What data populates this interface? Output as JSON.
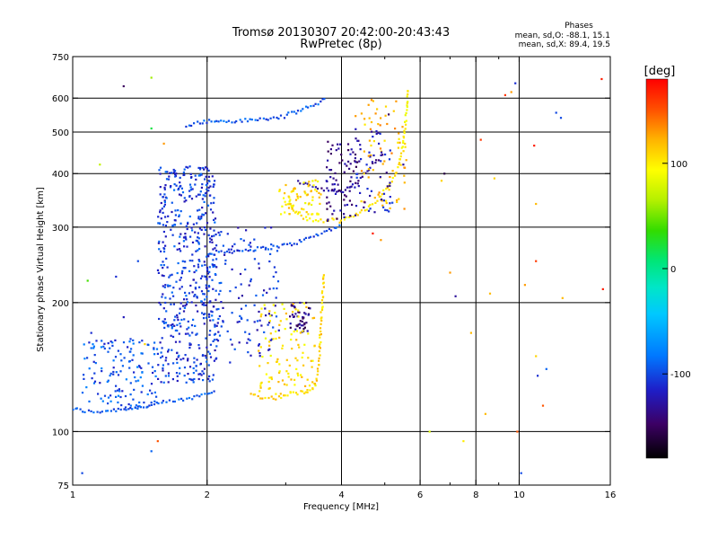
{
  "chart_data": {
    "type": "scatter",
    "title": "Tromsø 20130307 20:42:00-20:43:43",
    "subtitle": "RwPretec (8p)",
    "xlabel": "Frequency [MHz]",
    "ylabel": "Stationary phase Virtual Height [km]",
    "x_scale": "log",
    "y_scale": "log",
    "xlim": [
      1,
      16
    ],
    "ylim": [
      75,
      750
    ],
    "x_ticks": [
      1,
      2,
      4,
      6,
      8,
      10,
      16
    ],
    "x_tick_labels": [
      "1",
      "2",
      "4",
      "6",
      "8",
      "10",
      "16"
    ],
    "x_minor_ticks": [
      3,
      5,
      7,
      9
    ],
    "y_ticks": [
      75,
      100,
      200,
      300,
      400,
      500,
      600,
      750
    ],
    "y_tick_labels": [
      "75",
      "100",
      "200",
      "300",
      "400",
      "500",
      "600",
      "750"
    ],
    "grid_x": [
      2,
      4,
      6,
      8,
      10
    ],
    "grid_y": [
      100,
      200,
      300,
      400,
      500,
      600
    ],
    "stats": {
      "heading": "Phases",
      "line_o": "mean, sd,O: -88.1, 15.1",
      "line_x": "mean, sd,X: 89.4, 19.5"
    },
    "colorbar": {
      "label": "[deg]",
      "range": [
        -180,
        180
      ],
      "tick_values": [
        100,
        0,
        -100
      ],
      "tick_labels": [
        "100",
        "0",
        "-100"
      ],
      "colors": [
        "#000000",
        "#3c0064",
        "#1e1ec8",
        "#0078ff",
        "#00e6e6",
        "#00e678",
        "#32dc00",
        "#b4f000",
        "#ffff00",
        "#ffb400",
        "#ff5000",
        "#ff0000"
      ]
    },
    "series": [
      {
        "kind": "curve",
        "phase": -95,
        "points": [
          [
            1.0,
            113
          ],
          [
            1.05,
            112
          ],
          [
            1.1,
            111
          ],
          [
            1.2,
            112
          ],
          [
            1.3,
            113
          ],
          [
            1.4,
            114
          ],
          [
            1.5,
            115
          ],
          [
            1.6,
            117
          ],
          [
            1.7,
            118
          ],
          [
            1.8,
            119
          ],
          [
            1.9,
            121
          ],
          [
            2.0,
            123
          ],
          [
            2.1,
            126
          ]
        ]
      },
      {
        "kind": "curve",
        "phase": -100,
        "points": [
          [
            2.0,
            258
          ],
          [
            2.1,
            262
          ],
          [
            2.3,
            264
          ],
          [
            2.5,
            266
          ],
          [
            2.7,
            268
          ],
          [
            2.9,
            271
          ],
          [
            3.1,
            274
          ],
          [
            3.3,
            280
          ],
          [
            3.5,
            287
          ],
          [
            3.7,
            294
          ],
          [
            3.9,
            301
          ],
          [
            4.0,
            304
          ]
        ]
      },
      {
        "kind": "curve",
        "phase": 110,
        "points": [
          [
            2.5,
            122
          ],
          [
            2.7,
            120
          ],
          [
            2.9,
            120
          ],
          [
            3.0,
            122
          ],
          [
            3.2,
            123
          ],
          [
            3.4,
            126
          ],
          [
            3.5,
            130
          ],
          [
            3.55,
            140
          ],
          [
            3.58,
            160
          ],
          [
            3.6,
            180
          ],
          [
            3.62,
            200
          ],
          [
            3.64,
            220
          ],
          [
            3.65,
            235
          ]
        ]
      },
      {
        "kind": "curve",
        "phase": 100,
        "points": [
          [
            3.0,
            345
          ],
          [
            3.2,
            320
          ],
          [
            3.4,
            312
          ],
          [
            3.6,
            310
          ],
          [
            3.8,
            312
          ],
          [
            4.0,
            310
          ],
          [
            4.3,
            320
          ],
          [
            4.6,
            335
          ],
          [
            4.9,
            355
          ],
          [
            5.1,
            375
          ],
          [
            5.3,
            400
          ],
          [
            5.4,
            430
          ],
          [
            5.5,
            470
          ],
          [
            5.55,
            520
          ],
          [
            5.6,
            560
          ],
          [
            5.62,
            610
          ],
          [
            5.63,
            640
          ]
        ]
      },
      {
        "kind": "curve",
        "phase": -95,
        "points": [
          [
            1.8,
            520
          ],
          [
            1.9,
            525
          ],
          [
            2.0,
            530
          ],
          [
            2.1,
            530
          ],
          [
            2.3,
            530
          ],
          [
            2.6,
            535
          ],
          [
            2.9,
            540
          ],
          [
            3.2,
            560
          ],
          [
            3.5,
            580
          ],
          [
            3.7,
            600
          ]
        ]
      },
      {
        "kind": "curve",
        "phase": -130,
        "points": [
          [
            3.2,
            385
          ],
          [
            3.4,
            375
          ],
          [
            3.6,
            370
          ],
          [
            3.8,
            365
          ],
          [
            4.0,
            360
          ],
          [
            4.2,
            375
          ],
          [
            4.4,
            390
          ],
          [
            4.6,
            410
          ],
          [
            4.8,
            430
          ],
          [
            5.0,
            445
          ]
        ]
      },
      {
        "kind": "band",
        "phase": -105,
        "x_range": [
          1.55,
          2.1
        ],
        "y_range": [
          130,
          420
        ],
        "count": 520
      },
      {
        "kind": "band",
        "phase": -95,
        "x_range": [
          1.05,
          1.55
        ],
        "y_range": [
          113,
          165
        ],
        "count": 140
      },
      {
        "kind": "band",
        "phase": -110,
        "x_range": [
          2.0,
          2.9
        ],
        "y_range": [
          150,
          300
        ],
        "count": 140
      },
      {
        "kind": "band",
        "phase": -140,
        "x_range": [
          3.05,
          3.4
        ],
        "y_range": [
          170,
          200
        ],
        "count": 45
      },
      {
        "kind": "band",
        "phase": 105,
        "x_range": [
          2.6,
          3.5
        ],
        "y_range": [
          122,
          200
        ],
        "count": 110
      },
      {
        "kind": "band",
        "phase": 105,
        "x_range": [
          2.9,
          3.6
        ],
        "y_range": [
          320,
          390
        ],
        "count": 70
      },
      {
        "kind": "band",
        "phase": -135,
        "x_range": [
          3.7,
          4.4
        ],
        "y_range": [
          310,
          480
        ],
        "count": 80
      },
      {
        "kind": "band",
        "phase": 120,
        "x_range": [
          4.4,
          5.6
        ],
        "y_range": [
          330,
          600
        ],
        "count": 70
      },
      {
        "kind": "band",
        "phase": -120,
        "x_range": [
          4.3,
          5.2
        ],
        "y_range": [
          320,
          520
        ],
        "count": 50
      },
      {
        "kind": "scatter",
        "points": [
          [
            1.3,
            640,
            -150
          ],
          [
            1.5,
            670,
            60
          ],
          [
            1.5,
            510,
            20
          ],
          [
            1.6,
            470,
            130
          ],
          [
            1.25,
            230,
            -110
          ],
          [
            1.3,
            185,
            -120
          ],
          [
            1.4,
            250,
            -100
          ],
          [
            1.45,
            160,
            110
          ],
          [
            1.5,
            90,
            -90
          ],
          [
            1.55,
            95,
            150
          ],
          [
            1.15,
            420,
            70
          ],
          [
            1.08,
            225,
            40
          ],
          [
            1.05,
            80,
            -100
          ],
          [
            1.1,
            170,
            -110
          ],
          [
            1.15,
            130,
            -120
          ],
          [
            2.25,
            145,
            -110
          ],
          [
            4.3,
            545,
            130
          ],
          [
            4.6,
            440,
            130
          ],
          [
            4.7,
            290,
            170
          ],
          [
            4.9,
            280,
            130
          ],
          [
            5.1,
            550,
            -150
          ],
          [
            5.3,
            590,
            130
          ],
          [
            5.5,
            420,
            -130
          ],
          [
            6.3,
            100,
            80
          ],
          [
            6.7,
            385,
            110
          ],
          [
            6.8,
            400,
            -160
          ],
          [
            7.0,
            235,
            130
          ],
          [
            7.2,
            207,
            -130
          ],
          [
            7.5,
            95,
            100
          ],
          [
            7.8,
            170,
            120
          ],
          [
            8.2,
            480,
            160
          ],
          [
            8.4,
            110,
            120
          ],
          [
            8.8,
            390,
            110
          ],
          [
            8.6,
            210,
            120
          ],
          [
            9.3,
            610,
            160
          ],
          [
            9.6,
            620,
            130
          ],
          [
            9.8,
            650,
            -110
          ],
          [
            9.9,
            100,
            150
          ],
          [
            10.1,
            80,
            -100
          ],
          [
            10.3,
            220,
            130
          ],
          [
            10.8,
            465,
            170
          ],
          [
            10.9,
            340,
            120
          ],
          [
            10.9,
            250,
            160
          ],
          [
            10.9,
            150,
            110
          ],
          [
            11.3,
            115,
            150
          ],
          [
            11.5,
            140,
            -90
          ],
          [
            12.1,
            555,
            -100
          ],
          [
            12.4,
            540,
            -100
          ],
          [
            12.5,
            205,
            120
          ],
          [
            15.3,
            665,
            170
          ],
          [
            15.4,
            215,
            170
          ],
          [
            11.0,
            135,
            -110
          ]
        ]
      }
    ]
  }
}
